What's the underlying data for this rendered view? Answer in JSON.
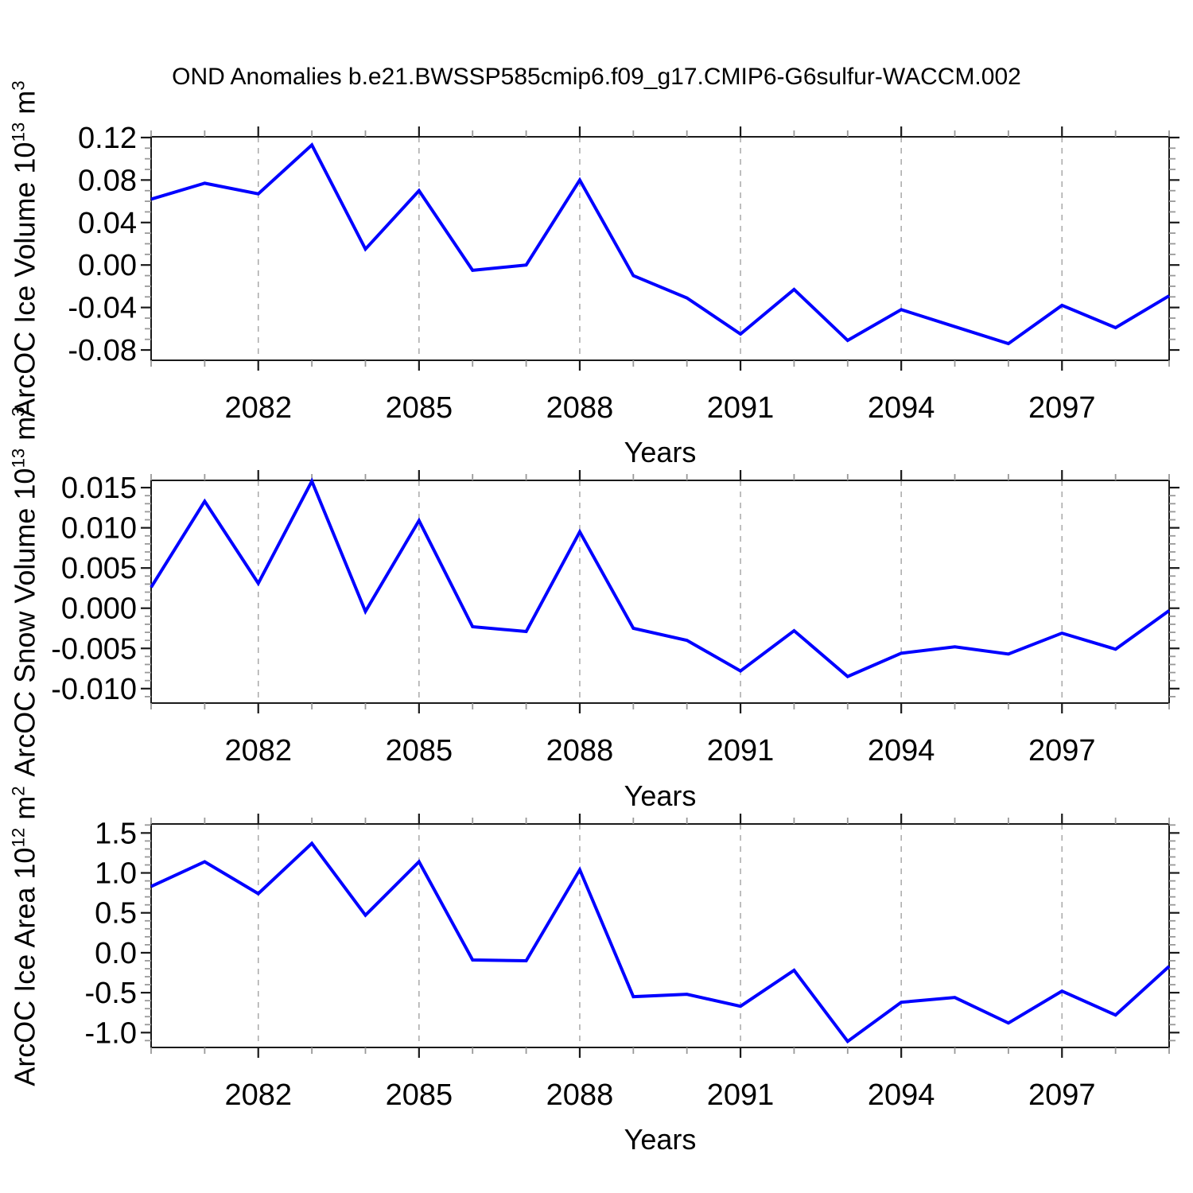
{
  "chart_data": {
    "type": "line",
    "title": "OND Anomalies b.e21.BWSSP585cmip6.f09_g17.CMIP6-G6sulfur-WACCM.002",
    "xlabel": "Years",
    "x": [
      2080,
      2081,
      2082,
      2083,
      2084,
      2085,
      2086,
      2087,
      2088,
      2089,
      2090,
      2091,
      2092,
      2093,
      2094,
      2095,
      2096,
      2097,
      2098,
      2099
    ],
    "xlim": [
      2080,
      2099
    ],
    "x_major_ticks": [
      2082,
      2085,
      2088,
      2091,
      2094,
      2097
    ],
    "x_minor_step": 1,
    "grid": "vertical dashed gridlines at major x ticks",
    "legend": "none",
    "colors": {
      "line": "#0000ff",
      "frame": "#1a1a1a",
      "minor_tick": "#999999",
      "grid": "#a9a9a9",
      "text": "#000000",
      "background": "#ffffff"
    },
    "panels": [
      {
        "name": "ice-volume",
        "ylabel": "ArcOC Ice Volume 10¹³ m³",
        "ylabel_parts": {
          "base": "ArcOC Ice Volume 10",
          "exp": "13",
          "unit": " m",
          "unit_exp": "3"
        },
        "ylim": [
          -0.0897,
          0.1207
        ],
        "y_major_ticks": [
          0.12,
          0.08,
          0.04,
          0.0,
          -0.04,
          -0.08
        ],
        "y_minor_step": 0.01,
        "y_tick_decimals": 2,
        "values": [
          0.062,
          0.077,
          0.067,
          0.113,
          0.015,
          0.07,
          -0.005,
          0.0,
          0.08,
          -0.01,
          -0.031,
          -0.065,
          -0.023,
          -0.071,
          -0.042,
          -0.058,
          -0.074,
          -0.038,
          -0.059,
          -0.029
        ]
      },
      {
        "name": "snow-volume",
        "ylabel": "ArcOC Snow Volume 10¹³ m³",
        "ylabel_parts": {
          "base": "ArcOC Snow Volume 10",
          "exp": "13",
          "unit": " m",
          "unit_exp": "3"
        },
        "ylim": [
          -0.0118,
          0.0159
        ],
        "y_major_ticks": [
          0.015,
          0.01,
          0.005,
          0.0,
          -0.005,
          -0.01
        ],
        "y_minor_step": 0.001,
        "y_tick_decimals": 3,
        "values": [
          0.0026,
          0.0133,
          0.0031,
          0.0158,
          -0.0004,
          0.0109,
          -0.0023,
          -0.0029,
          0.0095,
          -0.0025,
          -0.004,
          -0.0078,
          -0.0028,
          -0.0085,
          -0.0056,
          -0.0048,
          -0.0057,
          -0.0031,
          -0.0051,
          -0.0003
        ]
      },
      {
        "name": "ice-area",
        "ylabel": "ArcOC Ice Area 10¹² m²",
        "ylabel_parts": {
          "base": "ArcOC Ice Area 10",
          "exp": "12",
          "unit": " m",
          "unit_exp": "2"
        },
        "ylim": [
          -1.186,
          1.613
        ],
        "y_major_ticks": [
          1.5,
          1.0,
          0.5,
          0.0,
          -0.5,
          -1.0
        ],
        "y_minor_step": 0.1,
        "y_tick_decimals": 1,
        "values": [
          0.83,
          1.14,
          0.74,
          1.37,
          0.47,
          1.14,
          -0.09,
          -0.1,
          1.04,
          -0.55,
          -0.52,
          -0.67,
          -0.22,
          -1.11,
          -0.62,
          -0.56,
          -0.88,
          -0.48,
          -0.78,
          -0.17
        ]
      }
    ]
  }
}
